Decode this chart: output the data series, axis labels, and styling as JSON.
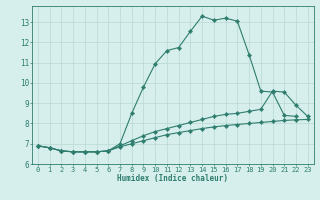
{
  "xlabel": "Humidex (Indice chaleur)",
  "xlim": [
    -0.5,
    23.5
  ],
  "ylim": [
    6.0,
    13.8
  ],
  "xticks": [
    0,
    1,
    2,
    3,
    4,
    5,
    6,
    7,
    8,
    9,
    10,
    11,
    12,
    13,
    14,
    15,
    16,
    17,
    18,
    19,
    20,
    21,
    22,
    23
  ],
  "yticks": [
    6,
    7,
    8,
    9,
    10,
    11,
    12,
    13
  ],
  "bg_color": "#d6efec",
  "line_color": "#2e7d6e",
  "grid_color": "#b8d8d4",
  "curve1_x": [
    0,
    1,
    2,
    3,
    4,
    5,
    6,
    7,
    8,
    9,
    10,
    11,
    12,
    13,
    14,
    15,
    16,
    17,
    18,
    19,
    20,
    21,
    22
  ],
  "curve1_y": [
    6.9,
    6.8,
    6.65,
    6.6,
    6.6,
    6.6,
    6.65,
    7.0,
    8.5,
    9.8,
    10.95,
    11.6,
    11.75,
    12.55,
    13.3,
    13.1,
    13.2,
    13.05,
    11.4,
    9.6,
    9.55,
    8.4,
    8.35
  ],
  "curve2_x": [
    0,
    1,
    2,
    3,
    4,
    5,
    6,
    7,
    8,
    9,
    10,
    11,
    12,
    13,
    14,
    15,
    16,
    17,
    18,
    19,
    20,
    21,
    22,
    23
  ],
  "curve2_y": [
    6.9,
    6.8,
    6.65,
    6.6,
    6.6,
    6.6,
    6.65,
    6.9,
    7.15,
    7.4,
    7.6,
    7.75,
    7.9,
    8.05,
    8.2,
    8.35,
    8.45,
    8.5,
    8.6,
    8.7,
    9.6,
    9.55,
    8.9,
    8.35
  ],
  "curve3_x": [
    0,
    1,
    2,
    3,
    4,
    5,
    6,
    7,
    8,
    9,
    10,
    11,
    12,
    13,
    14,
    15,
    16,
    17,
    18,
    19,
    20,
    21,
    22,
    23
  ],
  "curve3_y": [
    6.9,
    6.8,
    6.65,
    6.6,
    6.6,
    6.6,
    6.65,
    6.85,
    7.0,
    7.15,
    7.3,
    7.45,
    7.55,
    7.65,
    7.75,
    7.83,
    7.9,
    7.95,
    8.0,
    8.05,
    8.1,
    8.15,
    8.18,
    8.2
  ]
}
